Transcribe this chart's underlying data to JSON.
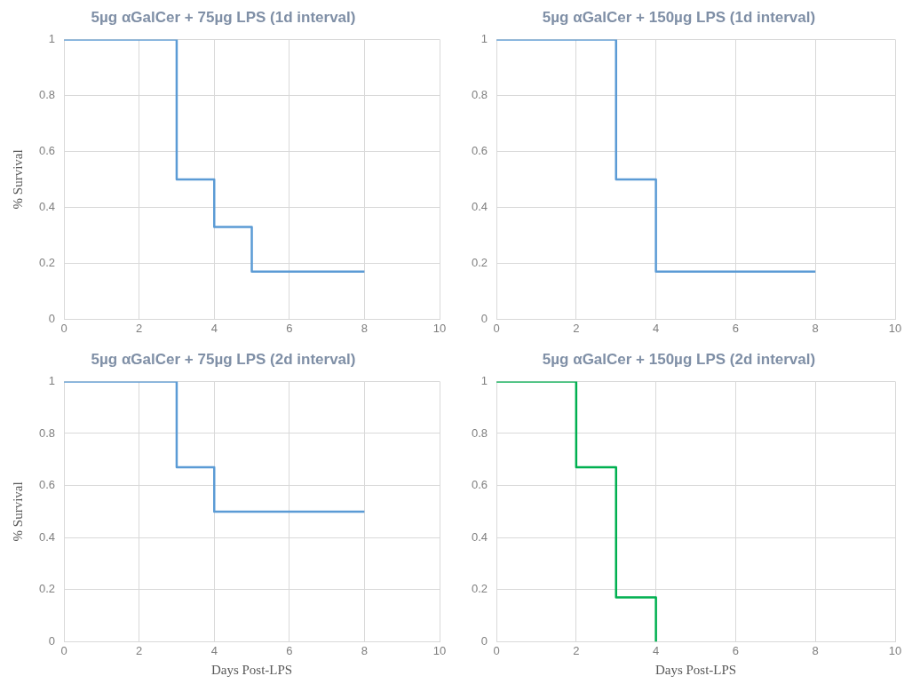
{
  "chart_data": [
    {
      "type": "step",
      "title": "5µg αGalCer + 75µg LPS (1d interval)",
      "ylabel": "% Survival",
      "xlim": [
        0,
        10
      ],
      "xticks": [
        0,
        2,
        4,
        6,
        8,
        10
      ],
      "ylim": [
        0,
        1
      ],
      "yticks": [
        0,
        0.2,
        0.4,
        0.6,
        0.8,
        1
      ],
      "grid": true,
      "legend": false,
      "marker": "none",
      "series": [
        {
          "color": "#5b9bd5",
          "x": [
            0,
            3,
            4,
            5,
            8
          ],
          "values": [
            1,
            0.5,
            0.33,
            0.17,
            0.17
          ]
        }
      ]
    },
    {
      "type": "step",
      "title": "5µg αGalCer + 150µg LPS (1d interval)",
      "xlim": [
        0,
        10
      ],
      "xticks": [
        0,
        2,
        4,
        6,
        8,
        10
      ],
      "ylim": [
        0,
        1
      ],
      "yticks": [
        0,
        0.2,
        0.4,
        0.6,
        0.8,
        1
      ],
      "grid": true,
      "legend": false,
      "marker": "none",
      "series": [
        {
          "color": "#5b9bd5",
          "x": [
            0,
            3,
            4,
            8
          ],
          "values": [
            1,
            0.5,
            0.17,
            0.17
          ]
        }
      ]
    },
    {
      "type": "step",
      "title": "5µg αGalCer + 75µg LPS (2d interval)",
      "xlabel": "Days Post-LPS",
      "ylabel": "% Survival",
      "xlim": [
        0,
        10
      ],
      "xticks": [
        0,
        2,
        4,
        6,
        8,
        10
      ],
      "ylim": [
        0,
        1
      ],
      "yticks": [
        0,
        0.2,
        0.4,
        0.6,
        0.8,
        1
      ],
      "grid": true,
      "legend": false,
      "marker": "none",
      "series": [
        {
          "color": "#5b9bd5",
          "x": [
            0,
            3,
            4,
            8
          ],
          "values": [
            1,
            0.67,
            0.5,
            0.5
          ]
        }
      ]
    },
    {
      "type": "step",
      "title": "5µg αGalCer + 150µg LPS (2d interval)",
      "xlabel": "Days Post-LPS",
      "xlim": [
        0,
        10
      ],
      "xticks": [
        0,
        2,
        4,
        6,
        8,
        10
      ],
      "ylim": [
        0,
        1
      ],
      "yticks": [
        0,
        0.2,
        0.4,
        0.6,
        0.8,
        1
      ],
      "grid": true,
      "legend": false,
      "marker": "none",
      "series": [
        {
          "color": "#00b050",
          "x": [
            0,
            2,
            3,
            4,
            4
          ],
          "values": [
            1,
            0.67,
            0.17,
            0.17,
            0
          ]
        }
      ]
    }
  ]
}
